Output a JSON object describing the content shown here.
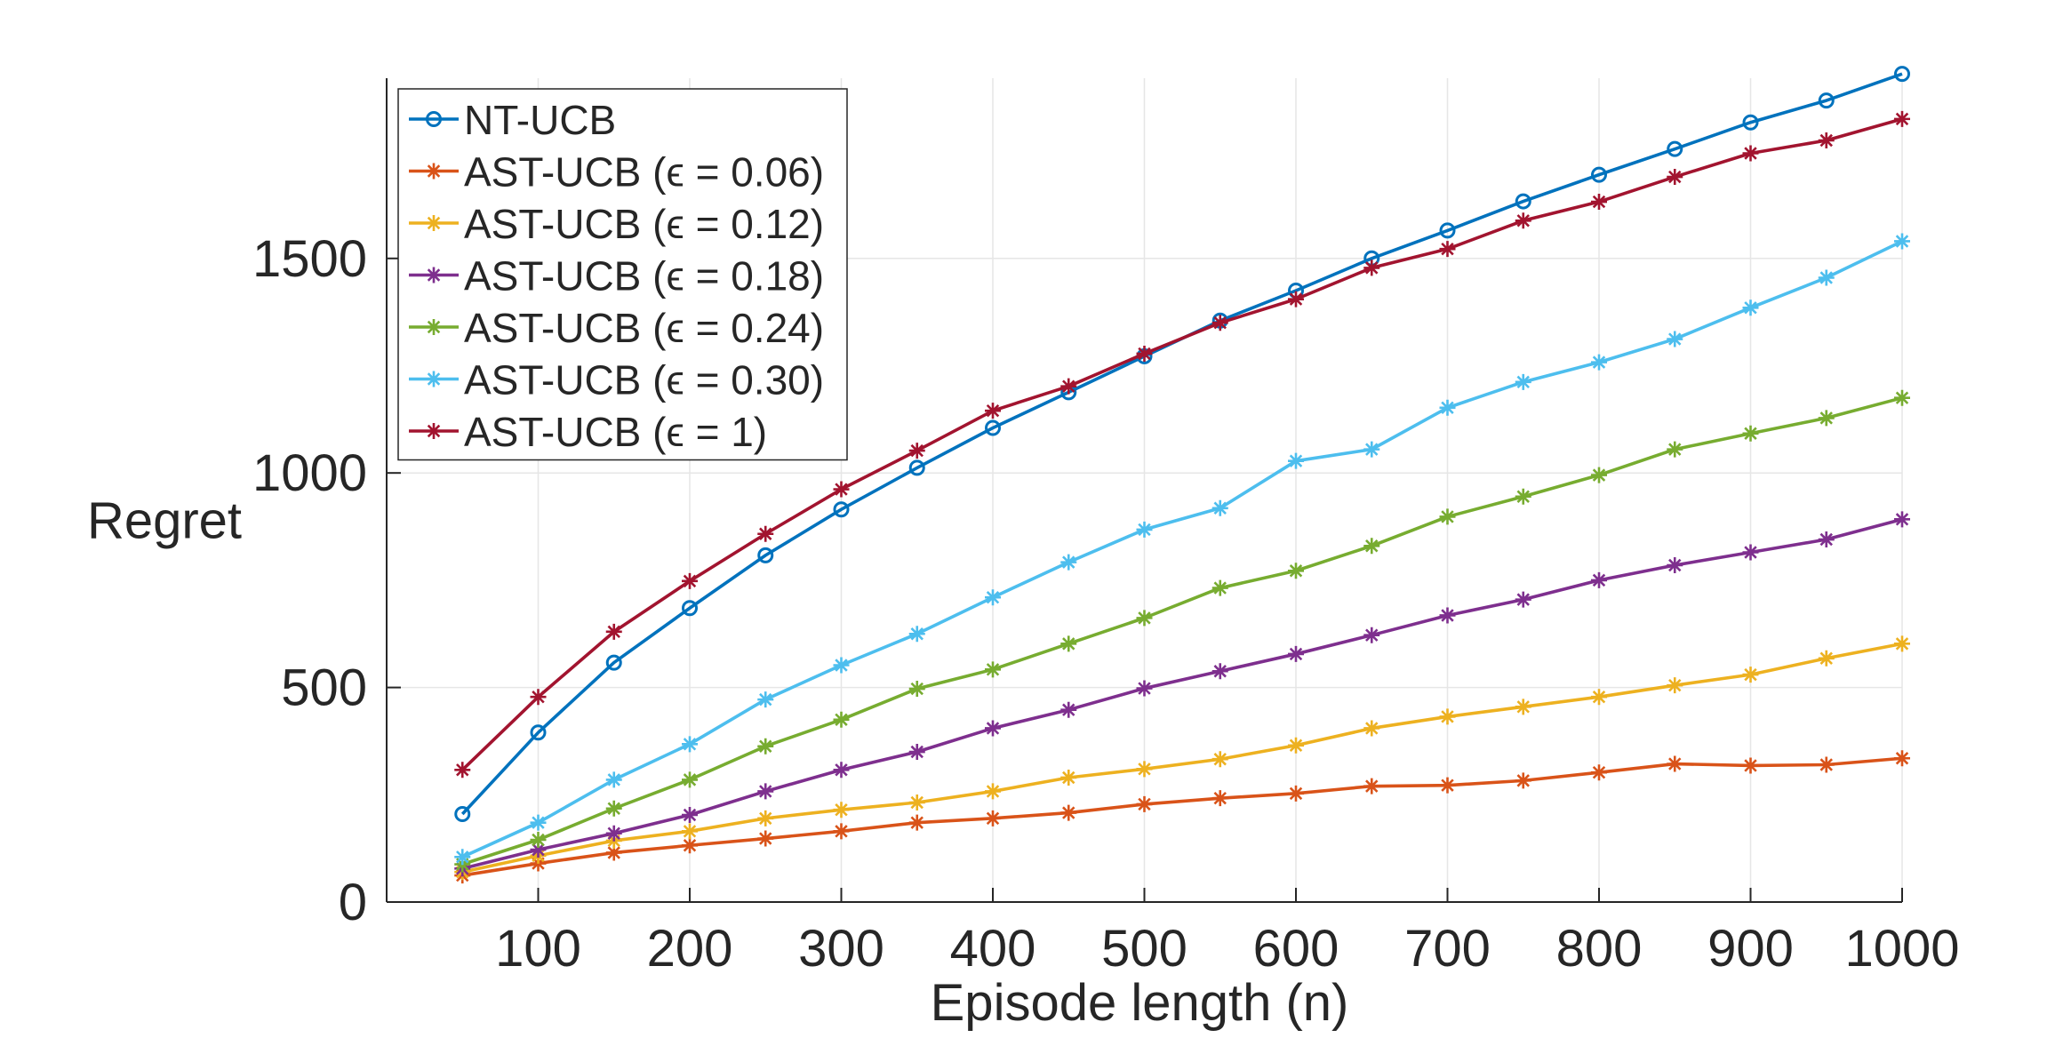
{
  "chart_data": {
    "type": "line",
    "title": "",
    "xlabel": "Episode length (n)",
    "ylabel": "Regret",
    "xlim": [
      0,
      1000
    ],
    "ylim": [
      0,
      1920
    ],
    "grid": true,
    "legend_position": "top-left",
    "x_ticks": [
      "100",
      "200",
      "300",
      "400",
      "500",
      "600",
      "700",
      "800",
      "900",
      "1000"
    ],
    "y_ticks": [
      "0",
      "500",
      "1000",
      "1500"
    ],
    "x": [
      50,
      100,
      150,
      200,
      250,
      300,
      350,
      400,
      450,
      500,
      550,
      600,
      650,
      700,
      750,
      800,
      850,
      900,
      950,
      1000
    ],
    "series": [
      {
        "name": "NT-UCB",
        "color": "#0072BD",
        "marker": "circle",
        "values": [
          205,
          395,
          558,
          685,
          808,
          915,
          1012,
          1105,
          1188,
          1272,
          1355,
          1425,
          1500,
          1565,
          1633,
          1695,
          1755,
          1817,
          1868,
          1930
        ]
      },
      {
        "name": "AST-UCB (ϵ = 0.06)",
        "color": "#D95319",
        "marker": "star",
        "values": [
          62,
          90,
          115,
          132,
          148,
          165,
          185,
          195,
          208,
          228,
          242,
          253,
          270,
          272,
          283,
          302,
          322,
          318,
          320,
          335
        ]
      },
      {
        "name": "AST-UCB (ϵ = 0.12)",
        "color": "#EDB120",
        "marker": "star",
        "values": [
          70,
          108,
          143,
          165,
          195,
          215,
          232,
          258,
          290,
          310,
          333,
          365,
          405,
          432,
          455,
          478,
          505,
          530,
          568,
          602
        ]
      },
      {
        "name": "AST-UCB (ϵ = 0.18)",
        "color": "#7E2F8E",
        "marker": "star",
        "values": [
          78,
          122,
          160,
          203,
          258,
          308,
          350,
          405,
          448,
          498,
          538,
          578,
          622,
          668,
          705,
          750,
          785,
          815,
          845,
          892
        ]
      },
      {
        "name": "AST-UCB (ϵ = 0.24)",
        "color": "#77AC30",
        "marker": "star",
        "values": [
          88,
          145,
          218,
          285,
          363,
          425,
          497,
          542,
          602,
          662,
          732,
          772,
          830,
          898,
          945,
          995,
          1055,
          1092,
          1128,
          1175
        ]
      },
      {
        "name": "AST-UCB (ϵ = 0.30)",
        "color": "#4DBEEE",
        "marker": "star",
        "values": [
          105,
          185,
          285,
          368,
          472,
          552,
          625,
          710,
          792,
          868,
          918,
          1028,
          1055,
          1152,
          1212,
          1258,
          1312,
          1385,
          1455,
          1540
        ]
      },
      {
        "name": "AST-UCB (ϵ = 1)",
        "color": "#A2142F",
        "marker": "star",
        "values": [
          308,
          478,
          630,
          748,
          858,
          962,
          1052,
          1145,
          1202,
          1278,
          1350,
          1405,
          1478,
          1522,
          1588,
          1632,
          1690,
          1745,
          1775,
          1825
        ]
      }
    ]
  }
}
